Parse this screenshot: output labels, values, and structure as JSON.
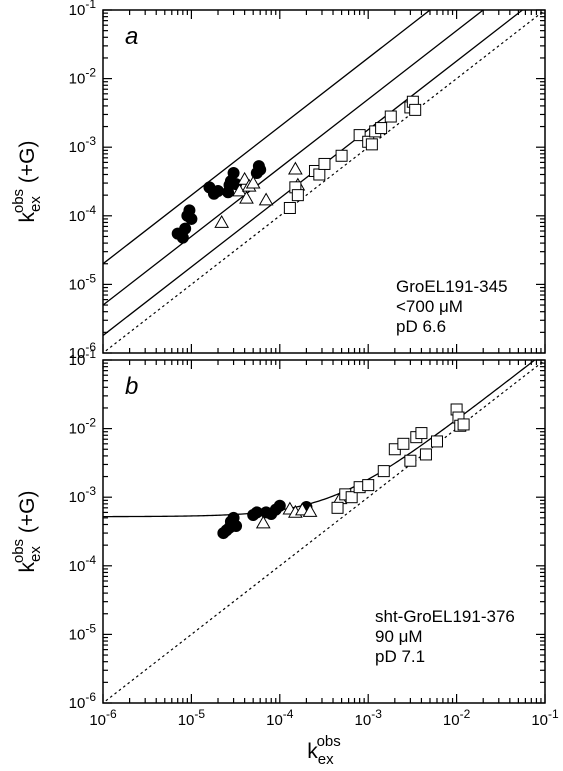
{
  "chart_data": [
    {
      "type": "scatter",
      "panel_label": "a",
      "x_scale": "log",
      "y_scale": "log",
      "xlim": [
        1e-06,
        0.1
      ],
      "ylim": [
        1e-06,
        0.1
      ],
      "x_tick_labels": [
        "10-6",
        "10-5",
        "10-4",
        "10-3",
        "10-2",
        "10-1"
      ],
      "y_tick_labels": [
        "10-6",
        "10-5",
        "10-4",
        "10-3",
        "10-2",
        "10-1"
      ],
      "ylabel": "k_ex^obs (+G)",
      "annotation": [
        "GroEL191-345",
        "<700 μM",
        "pD 6.6"
      ],
      "series": [
        {
          "marker": "filled-circle",
          "points": [
            [
              7e-06,
              5.5e-05
            ],
            [
              8e-06,
              4.8e-05
            ],
            [
              8.5e-06,
              6.5e-05
            ],
            [
              9e-06,
              0.0001
            ],
            [
              9.5e-06,
              0.00012
            ],
            [
              1e-05,
              9e-05
            ],
            [
              1.6e-05,
              0.00026
            ],
            [
              1.8e-05,
              0.00021
            ],
            [
              2e-05,
              0.00023
            ],
            [
              2.6e-05,
              0.00022
            ],
            [
              2.7e-05,
              0.00028
            ],
            [
              2.8e-05,
              0.00032
            ],
            [
              3e-05,
              0.00042
            ],
            [
              3.2e-05,
              0.00029
            ],
            [
              5.5e-05,
              0.00042
            ],
            [
              5.8e-05,
              0.00053
            ],
            [
              6e-05,
              0.00047
            ]
          ]
        },
        {
          "marker": "open-triangle",
          "points": [
            [
              2.2e-05,
              8e-05
            ],
            [
              3.5e-05,
              0.00023
            ],
            [
              4e-05,
              0.00034
            ],
            [
              4.2e-05,
              0.00018
            ],
            [
              4.5e-05,
              0.00027
            ],
            [
              5e-05,
              0.0003
            ],
            [
              7e-05,
              0.00017
            ],
            [
              0.00015,
              0.00048
            ],
            [
              0.00016,
              0.00028
            ]
          ]
        },
        {
          "marker": "open-square",
          "points": [
            [
              0.00013,
              0.00013
            ],
            [
              0.00015,
              0.00026
            ],
            [
              0.00016,
              0.0002
            ],
            [
              0.00025,
              0.00045
            ],
            [
              0.00028,
              0.0004
            ],
            [
              0.00032,
              0.00057
            ],
            [
              0.0005,
              0.00075
            ],
            [
              0.0008,
              0.0015
            ],
            [
              0.001,
              0.0012
            ],
            [
              0.0011,
              0.0011
            ],
            [
              0.0012,
              0.0017
            ],
            [
              0.0014,
              0.0019
            ],
            [
              0.0018,
              0.0028
            ],
            [
              0.003,
              0.0038
            ],
            [
              0.0032,
              0.0046
            ],
            [
              0.0034,
              0.0035
            ]
          ]
        }
      ],
      "reference_lines": [
        {
          "style": "solid",
          "ratio": 20
        },
        {
          "style": "solid",
          "ratio": 5
        },
        {
          "style": "solid",
          "ratio": 1.8
        },
        {
          "style": "dotted",
          "ratio": 1
        }
      ]
    },
    {
      "type": "scatter",
      "panel_label": "b",
      "x_scale": "log",
      "y_scale": "log",
      "xlim": [
        1e-06,
        0.1
      ],
      "ylim": [
        1e-06,
        0.1
      ],
      "x_tick_labels": [
        "10-6",
        "10-5",
        "10-4",
        "10-3",
        "10-2",
        "10-1"
      ],
      "y_tick_labels": [
        "10-6",
        "10-5",
        "10-4",
        "10-3",
        "10-2",
        "10-1"
      ],
      "xlabel": "k_ex^obs",
      "ylabel": "k_ex^obs (+G)",
      "annotation": [
        "sht-GroEL191-376",
        "90 μM",
        "pD 7.1"
      ],
      "series": [
        {
          "marker": "filled-circle",
          "points": [
            [
              2.3e-05,
              0.0003
            ],
            [
              2.5e-05,
              0.00033
            ],
            [
              2.7e-05,
              0.00036
            ],
            [
              2.8e-05,
              0.00044
            ],
            [
              3e-05,
              0.0005
            ],
            [
              3.2e-05,
              0.00038
            ],
            [
              5e-05,
              0.00055
            ],
            [
              5.5e-05,
              0.0006
            ],
            [
              7e-05,
              0.0006
            ],
            [
              8e-05,
              0.00057
            ],
            [
              9e-05,
              0.00066
            ],
            [
              0.0001,
              0.00075
            ],
            [
              0.0002,
              0.00072
            ]
          ]
        },
        {
          "marker": "open-triangle",
          "points": [
            [
              6.5e-05,
              0.00042
            ],
            [
              0.00013,
              0.00067
            ],
            [
              0.00015,
              0.0006
            ],
            [
              0.00018,
              0.00065
            ],
            [
              0.00022,
              0.00062
            ],
            [
              0.00048,
              0.00095
            ]
          ]
        },
        {
          "marker": "open-square",
          "points": [
            [
              0.00045,
              0.0007
            ],
            [
              0.00055,
              0.0011
            ],
            [
              0.00065,
              0.001
            ],
            [
              0.0008,
              0.0014
            ],
            [
              0.001,
              0.0015
            ],
            [
              0.0015,
              0.0024
            ],
            [
              0.002,
              0.005
            ],
            [
              0.0025,
              0.006
            ],
            [
              0.003,
              0.0034
            ],
            [
              0.0035,
              0.0075
            ],
            [
              0.004,
              0.0086
            ],
            [
              0.0045,
              0.0042
            ],
            [
              0.006,
              0.0065
            ],
            [
              0.01,
              0.019
            ],
            [
              0.0105,
              0.0145
            ],
            [
              0.011,
              0.011
            ],
            [
              0.012,
              0.0115
            ]
          ]
        }
      ],
      "reference_lines": [
        {
          "style": "solid",
          "form": "y = 0.00052 + 1.3x"
        },
        {
          "style": "dotted",
          "ratio": 1
        }
      ]
    }
  ]
}
